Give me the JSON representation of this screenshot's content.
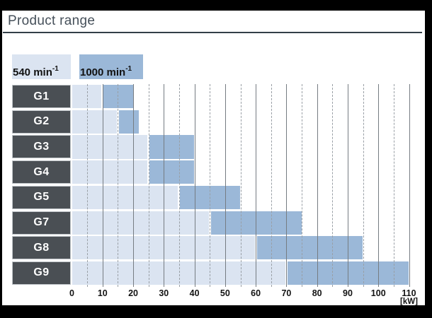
{
  "page": {
    "title": "Product range"
  },
  "legend": {
    "items": [
      {
        "label_base": "540 min",
        "label_sup": "-1",
        "color": "#dbe4f1"
      },
      {
        "label_base": "1000 min",
        "label_sup": "-1",
        "color": "#9bb8d8"
      }
    ]
  },
  "colors": {
    "band_540": "#dbe4f1",
    "band_1000": "#9bb8d8",
    "row_label_bg": "#4a4f54",
    "row_label_text": "#ffffff",
    "grid_major": "#767c82",
    "grid_minor": "#999fa5",
    "title_text": "#46505a",
    "frame": "#000000"
  },
  "chart_data": {
    "type": "bar",
    "subtype": "horizontal-range-bars",
    "title": "Product range",
    "unit_label": "[kW]",
    "x_axis": {
      "min": 0,
      "max": 110,
      "tick_step": 10,
      "minor_step": 5,
      "ticks": [
        0,
        10,
        20,
        30,
        40,
        50,
        60,
        70,
        80,
        90,
        100,
        110
      ],
      "grid": "major-solid-minor-dashed"
    },
    "series": [
      {
        "name": "540 min-1",
        "color": "#dbe4f1"
      },
      {
        "name": "1000 min-1",
        "color": "#9bb8d8"
      }
    ],
    "rows": [
      {
        "label": "G1",
        "range_540_kw": [
          0,
          10
        ],
        "range_1000_kw": [
          10,
          20
        ]
      },
      {
        "label": "G2",
        "range_540_kw": [
          0,
          15
        ],
        "range_1000_kw": [
          15,
          22
        ]
      },
      {
        "label": "G3",
        "range_540_kw": [
          0,
          25
        ],
        "range_1000_kw": [
          25,
          40
        ]
      },
      {
        "label": "G4",
        "range_540_kw": [
          0,
          25
        ],
        "range_1000_kw": [
          25,
          40
        ]
      },
      {
        "label": "G5",
        "range_540_kw": [
          0,
          35
        ],
        "range_1000_kw": [
          35,
          55
        ]
      },
      {
        "label": "G7",
        "range_540_kw": [
          0,
          45
        ],
        "range_1000_kw": [
          45,
          75
        ]
      },
      {
        "label": "G8",
        "range_540_kw": [
          0,
          60
        ],
        "range_1000_kw": [
          60,
          95
        ]
      },
      {
        "label": "G9",
        "range_540_kw": [
          0,
          70
        ],
        "range_1000_kw": [
          70,
          110
        ]
      }
    ]
  }
}
